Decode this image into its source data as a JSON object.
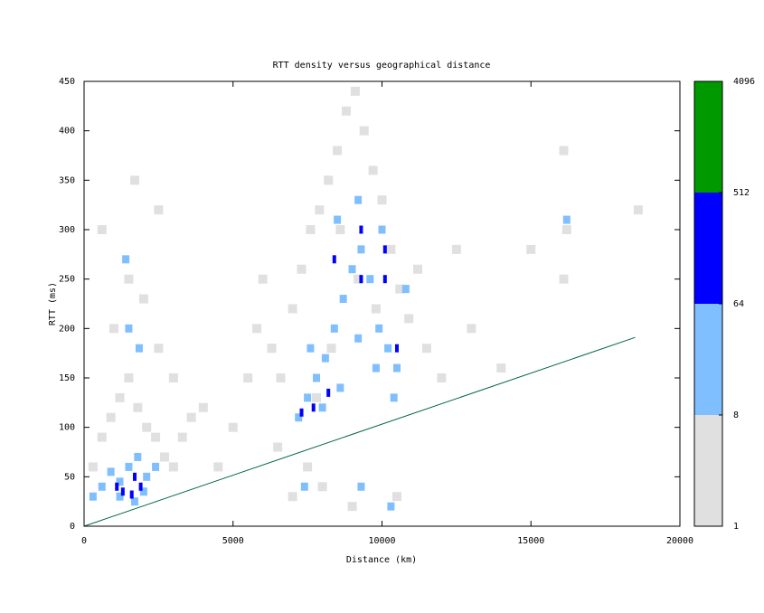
{
  "chart_data": {
    "type": "density",
    "title": "RTT density versus geographical distance",
    "xlabel": "Distance (km)",
    "ylabel": "RTT (ms)",
    "xlim": [
      0,
      20000
    ],
    "xticks": [
      0,
      5000,
      10000,
      15000,
      20000
    ],
    "ylim": [
      0,
      450
    ],
    "yticks": [
      0,
      50,
      100,
      150,
      200,
      250,
      300,
      350,
      400,
      450
    ],
    "cells": [
      {
        "color": "#e0e0e0",
        "x": [
          300,
          600,
          900,
          1200,
          1500,
          1800,
          2100,
          2400,
          2700,
          3000,
          3300,
          3600,
          1000,
          1500,
          2000,
          2500,
          3000,
          4000,
          4500,
          5000,
          5500,
          5800,
          6000,
          6300,
          6600,
          7000,
          7300,
          7600,
          7900,
          8200,
          8500,
          8800,
          9100,
          9400,
          9700,
          10000,
          10300,
          10600,
          10900,
          11200,
          11500,
          12000,
          7000,
          8000,
          9000,
          10500,
          8600,
          9200,
          9800,
          8300,
          7800,
          13000,
          14000,
          15000,
          16100,
          16200,
          16100,
          18600,
          1700,
          2500,
          600,
          12500,
          6500,
          7500
        ],
        "y": [
          60,
          90,
          110,
          130,
          150,
          120,
          100,
          90,
          70,
          60,
          90,
          110,
          200,
          250,
          230,
          180,
          150,
          120,
          60,
          100,
          150,
          200,
          250,
          180,
          150,
          220,
          260,
          300,
          320,
          350,
          380,
          420,
          440,
          400,
          360,
          330,
          280,
          240,
          210,
          260,
          180,
          150,
          30,
          40,
          20,
          30,
          300,
          250,
          220,
          180,
          130,
          200,
          160,
          280,
          380,
          300,
          250,
          320,
          350,
          320,
          300,
          280,
          80,
          60
        ]
      },
      {
        "color": "#80bfff",
        "x": [
          300,
          600,
          900,
          1200,
          1500,
          1800,
          2100,
          2400,
          1200,
          1700,
          2000,
          1500,
          1850,
          7200,
          7500,
          7800,
          8100,
          8400,
          8700,
          9000,
          9300,
          9600,
          9900,
          10200,
          10500,
          7600,
          8000,
          8600,
          9200,
          9800,
          10400,
          8500,
          9200,
          10000,
          16200,
          10300,
          9300,
          7400,
          10800,
          1400
        ],
        "y": [
          30,
          40,
          55,
          45,
          60,
          70,
          50,
          60,
          30,
          25,
          35,
          200,
          180,
          110,
          130,
          150,
          170,
          200,
          230,
          260,
          280,
          250,
          200,
          180,
          160,
          180,
          120,
          140,
          190,
          160,
          130,
          310,
          330,
          300,
          310,
          20,
          40,
          40,
          240,
          270
        ]
      },
      {
        "color": "#0000ff",
        "x": [
          1300,
          1600,
          1900,
          1100,
          7300,
          7700,
          8200,
          8400,
          9300,
          9300,
          10100,
          10100,
          10500,
          1700
        ],
        "y": [
          35,
          32,
          40,
          40,
          115,
          120,
          135,
          270,
          300,
          250,
          280,
          250,
          180,
          50
        ]
      }
    ],
    "fit": {
      "color": "#006644",
      "x": [
        0,
        18500
      ],
      "y": [
        0,
        191
      ]
    },
    "colorbar": {
      "ticks": [
        1,
        8,
        64,
        512,
        4096
      ],
      "colors": [
        "#e0e0e0",
        "#80bfff",
        "#0000ff",
        "#009900"
      ]
    }
  }
}
